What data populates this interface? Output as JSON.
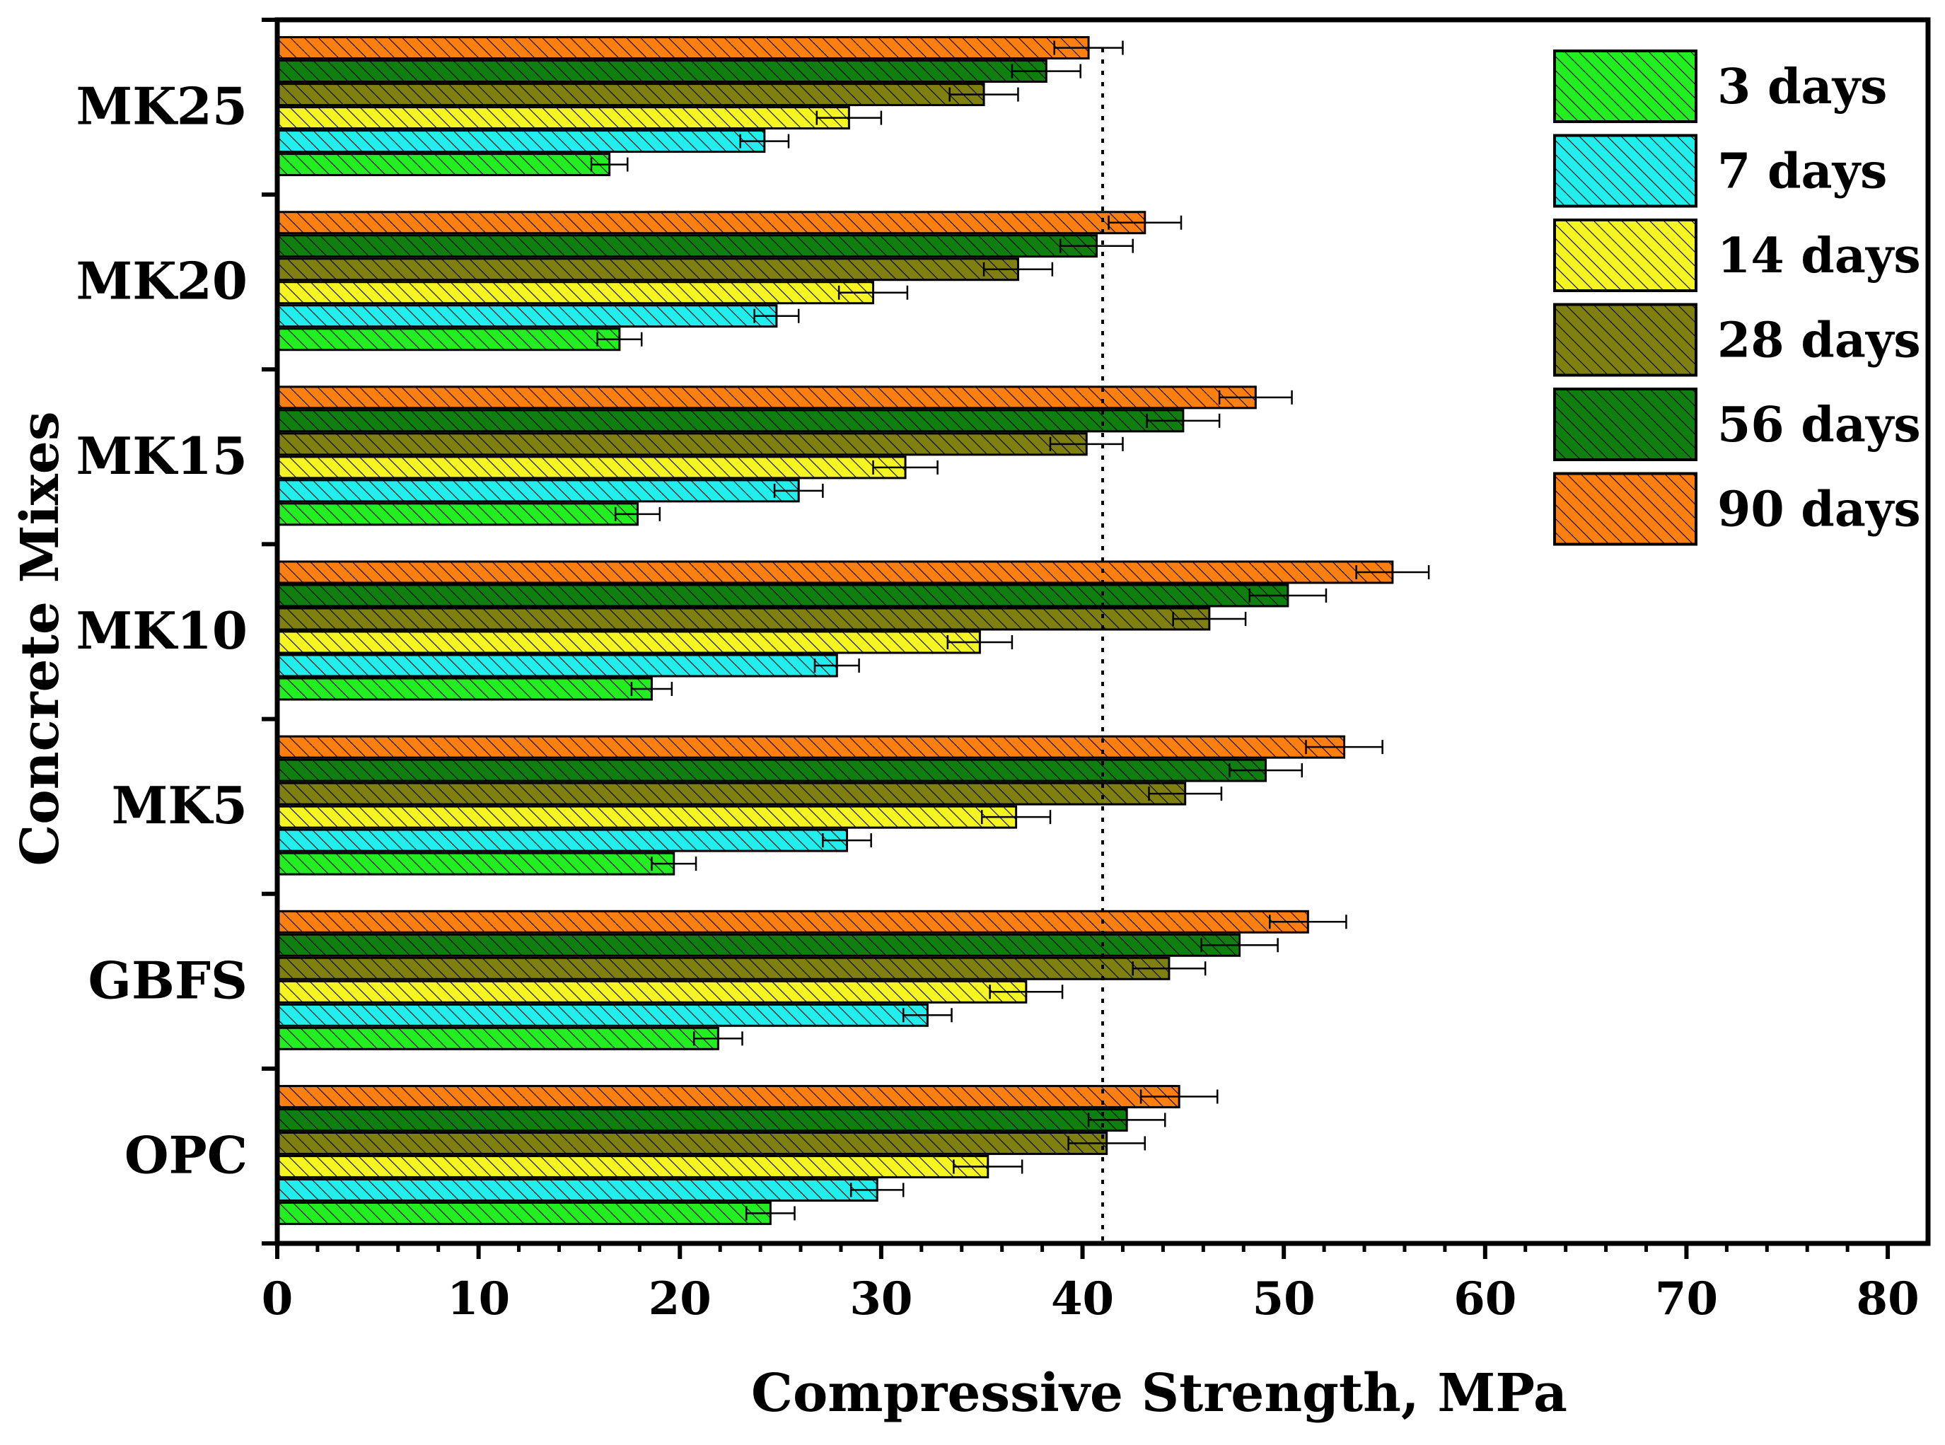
{
  "chart_data": {
    "type": "bar",
    "orientation": "horizontal",
    "title": "",
    "xlabel": "Compressive Strength, MPa",
    "ylabel": "Concrete Mixes",
    "xlim": [
      0,
      82
    ],
    "xticks": [
      0,
      10,
      20,
      30,
      40,
      50,
      60,
      70,
      80
    ],
    "reference_line": 41,
    "legend_position": "top-right",
    "categories": [
      "OPC",
      "GBFS",
      "MK5",
      "MK10",
      "MK15",
      "MK20",
      "MK25"
    ],
    "series": [
      {
        "name": "3 days",
        "color": "#22ee22",
        "values": [
          24.5,
          21.9,
          19.7,
          18.6,
          17.9,
          17.0,
          16.5
        ],
        "errors": [
          1.2,
          1.2,
          1.1,
          1.0,
          1.1,
          1.1,
          0.9
        ]
      },
      {
        "name": "7 days",
        "color": "#22eeee",
        "values": [
          29.8,
          32.3,
          28.3,
          27.8,
          25.9,
          24.8,
          24.2
        ],
        "errors": [
          1.3,
          1.2,
          1.2,
          1.1,
          1.2,
          1.1,
          1.2
        ]
      },
      {
        "name": "14 days",
        "color": "#f5f522",
        "values": [
          35.3,
          37.2,
          36.7,
          34.9,
          31.2,
          29.6,
          28.4
        ],
        "errors": [
          1.7,
          1.8,
          1.7,
          1.6,
          1.6,
          1.7,
          1.6
        ]
      },
      {
        "name": "28 days",
        "color": "#808010",
        "values": [
          41.2,
          44.3,
          45.1,
          46.3,
          40.2,
          36.8,
          35.1
        ],
        "errors": [
          1.9,
          1.8,
          1.8,
          1.8,
          1.8,
          1.7,
          1.7
        ]
      },
      {
        "name": "56 days",
        "color": "#0f7f10",
        "values": [
          42.2,
          47.8,
          49.1,
          50.2,
          45.0,
          40.7,
          38.2
        ],
        "errors": [
          1.9,
          1.9,
          1.8,
          1.9,
          1.8,
          1.8,
          1.7
        ]
      },
      {
        "name": "90 days",
        "color": "#ff7f10",
        "values": [
          44.8,
          51.2,
          53.0,
          55.4,
          48.6,
          43.1,
          40.3
        ],
        "errors": [
          1.9,
          1.9,
          1.9,
          1.8,
          1.8,
          1.8,
          1.7
        ]
      }
    ]
  }
}
